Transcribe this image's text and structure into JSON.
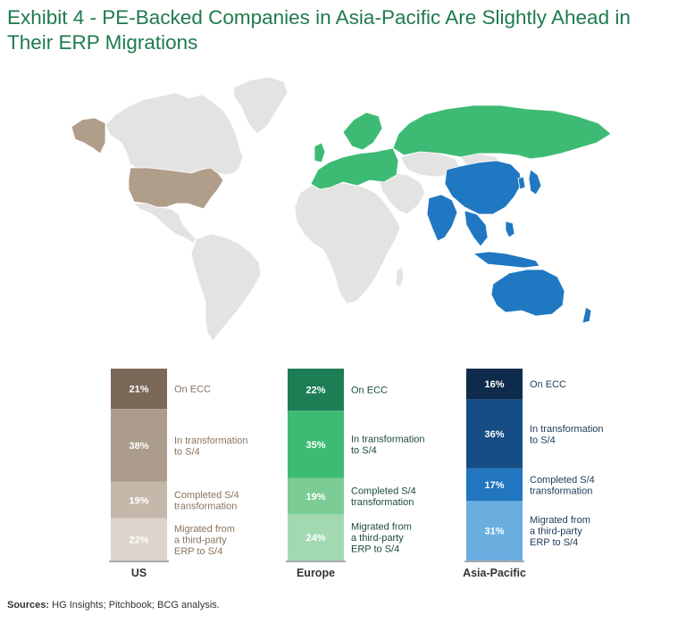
{
  "title": "Exhibit 4 - PE-Backed Companies in Asia-Pacific Are Slightly Ahead in Their ERP Migrations",
  "source": {
    "label": "Sources:",
    "text": " HG Insights; Pitchbook; BCG analysis."
  },
  "map": {
    "region_colors": {
      "us": "#b09e8a",
      "europe": "#3dbb74",
      "asia_pacific": "#1f78c1",
      "other": "#e3e3e1"
    }
  },
  "chart_data": {
    "type": "bar",
    "stacked": true,
    "normalized_to_percent": true,
    "categories": [
      "US",
      "Europe",
      "Asia-Pacific"
    ],
    "series": [
      {
        "name": "On ECC",
        "values": [
          21,
          22,
          16
        ]
      },
      {
        "name": "In transformation to S/4",
        "values": [
          38,
          35,
          36
        ]
      },
      {
        "name": "Completed S/4 transformation",
        "values": [
          19,
          19,
          17
        ]
      },
      {
        "name": "Migrated from a third-party ERP to S/4",
        "values": [
          22,
          24,
          31
        ]
      }
    ],
    "value_labels": [
      [
        "21%",
        "38%",
        "19%",
        "22%"
      ],
      [
        "22%",
        "35%",
        "19%",
        "24%"
      ],
      [
        "16%",
        "36%",
        "17%",
        "31%"
      ]
    ],
    "segment_labels": [
      [
        "On ECC"
      ],
      [
        "In transformation",
        "to S/4"
      ],
      [
        "Completed S/4",
        "transformation"
      ],
      [
        "Migrated from",
        "a third-party",
        "ERP to S/4"
      ]
    ],
    "palettes": {
      "US": {
        "segments": [
          "#7b6756",
          "#ab9c8c",
          "#c4b8ab",
          "#dcd4ca"
        ],
        "label_text": "#8a7460",
        "value_text": "#ffffff"
      },
      "Europe": {
        "segments": [
          "#1d7e56",
          "#3dbb74",
          "#7ccc96",
          "#a3d9b1"
        ],
        "label_text": "#1d4d35",
        "value_text": "#ffffff"
      },
      "Asia-Pacific": {
        "segments": [
          "#0e2b4c",
          "#154d84",
          "#2176bf",
          "#6aaee0"
        ],
        "label_text": "#1c3b5a",
        "value_text": "#ffffff"
      }
    },
    "title": "",
    "ylim": [
      0,
      100
    ],
    "grid": false,
    "legend": "segment labels to the right of each bar"
  }
}
